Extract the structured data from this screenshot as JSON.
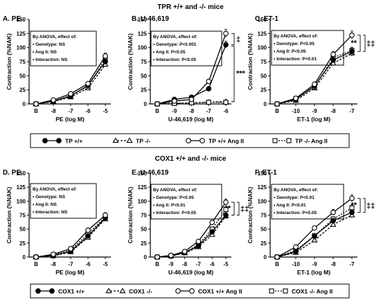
{
  "group_titles": [
    "TPR +/+ and -/- mice",
    "COX1 +/+ and -/- mice"
  ],
  "legends": [
    [
      "TP +/+",
      "TP -/-",
      "TP +/+ Ang II",
      "TP -/- Ang II"
    ],
    [
      "COX1 +/+",
      "COX1 -/-",
      "COX1 +/+ Ang II",
      "COX1 -/- Ang II"
    ]
  ],
  "colors": {
    "line": "#000000",
    "open_marker": "#ffffff",
    "filled_marker": "#000000"
  },
  "chart_data": [
    {
      "type": "line",
      "title": "A.  PE",
      "xlabel": "PE (log M)",
      "ylabel": "Contraction (%NAK)",
      "categories": [
        "B",
        "-8",
        "-7",
        "-6",
        "-5"
      ],
      "ylim": [
        0,
        150
      ],
      "yticks": [
        0,
        25,
        50,
        75,
        100,
        125,
        150
      ],
      "anova": [
        "By ANOVA, effect of:",
        "• Genotype: NS",
        "• Ang II: NS",
        "• Interaction: NS"
      ],
      "series": [
        {
          "name": "TP +/+",
          "values": [
            0,
            5,
            14,
            33,
            75
          ]
        },
        {
          "name": "TP -/-",
          "values": [
            0,
            4,
            12,
            28,
            70
          ]
        },
        {
          "name": "TP +/+ Ang II",
          "values": [
            0,
            7,
            18,
            36,
            85
          ]
        },
        {
          "name": "TP -/- Ang II",
          "values": [
            0,
            5,
            15,
            31,
            80
          ]
        }
      ],
      "annotations": []
    },
    {
      "type": "line",
      "title": "B.  U-46,619",
      "xlabel": "U-46,619 (log M)",
      "ylabel": "Contraction (%NAK)",
      "categories": [
        "B",
        "-9",
        "-8",
        "-7",
        "-6"
      ],
      "ylim": [
        0,
        150
      ],
      "yticks": [
        0,
        25,
        50,
        75,
        100,
        125,
        150
      ],
      "anova": [
        "By ANOVA, effect of:",
        "• Genotype: P<0.001",
        "• Ang II: P<0.05",
        "• Interaction: P<0.05"
      ],
      "series": [
        {
          "name": "TP +/+",
          "values": [
            0,
            8,
            12,
            27,
            105
          ]
        },
        {
          "name": "TP -/-",
          "values": [
            0,
            1,
            2,
            3,
            4
          ]
        },
        {
          "name": "TP +/+ Ang II",
          "values": [
            0,
            5,
            8,
            40,
            125
          ]
        },
        {
          "name": "TP -/- Ang II",
          "values": [
            0,
            1,
            2,
            3,
            3
          ]
        }
      ],
      "annotations": [
        "‡",
        "***"
      ]
    },
    {
      "type": "line",
      "title": "C.  ET-1",
      "xlabel": "ET-1 (log M)",
      "ylabel": "Contraction (%NAK)",
      "categories": [
        "B",
        "-10",
        "-9",
        "-8",
        "-7"
      ],
      "ylim": [
        0,
        150
      ],
      "yticks": [
        0,
        25,
        50,
        75,
        100,
        125,
        150
      ],
      "anova": [
        "By ANOVA, effect of:",
        "• Genotype: P<0.05",
        "• Ang II: P<0.05",
        "• Interaction: P<0.01"
      ],
      "series": [
        {
          "name": "TP +/+",
          "values": [
            0,
            8,
            32,
            78,
            93
          ]
        },
        {
          "name": "TP -/-",
          "values": [
            0,
            6,
            28,
            72,
            90
          ]
        },
        {
          "name": "TP +/+ Ang II",
          "values": [
            0,
            10,
            35,
            88,
            122
          ]
        },
        {
          "name": "TP -/- Ang II",
          "values": [
            0,
            9,
            30,
            82,
            95
          ]
        }
      ],
      "annotations": [
        "**",
        "‡‡"
      ]
    },
    {
      "type": "line",
      "title": "D.  PE",
      "xlabel": "PE (log M)",
      "ylabel": "Contraction (%NAK)",
      "categories": [
        "B",
        "-8",
        "-7",
        "-6",
        "-5"
      ],
      "ylim": [
        0,
        150
      ],
      "yticks": [
        0,
        25,
        50,
        75,
        100,
        125,
        150
      ],
      "anova": [
        "By ANOVA, effect of:",
        "• Genotype: NS",
        "• Ang II: NS",
        "• Interaction: NS"
      ],
      "series": [
        {
          "name": "COX1 +/+",
          "values": [
            0,
            3,
            10,
            38,
            70
          ]
        },
        {
          "name": "COX1 -/-",
          "values": [
            0,
            2,
            9,
            35,
            68
          ]
        },
        {
          "name": "COX1 +/+ Ang II",
          "values": [
            0,
            5,
            15,
            48,
            75
          ]
        },
        {
          "name": "COX1 -/- Ang II",
          "values": [
            0,
            4,
            12,
            42,
            72
          ]
        }
      ],
      "annotations": []
    },
    {
      "type": "line",
      "title": "E.  U-46,619",
      "xlabel": "U-46,619 (log M)",
      "ylabel": "Contraction (%NAK)",
      "categories": [
        "B",
        "-9",
        "-8",
        "-7",
        "-6",
        "-5"
      ],
      "ylim": [
        0,
        150
      ],
      "yticks": [
        0,
        25,
        50,
        75,
        100,
        125,
        150
      ],
      "anova": [
        "By ANOVA, effect of:",
        "• Genotype: P<0.05",
        "• Ang II: P<0.01",
        "• Interaction: P<0.05"
      ],
      "series": [
        {
          "name": "COX1 +/+",
          "values": [
            0,
            2,
            8,
            20,
            45,
            75
          ]
        },
        {
          "name": "COX1 -/-",
          "values": [
            0,
            2,
            7,
            18,
            40,
            73
          ]
        },
        {
          "name": "COX1 +/+ Ang II",
          "values": [
            0,
            3,
            10,
            28,
            62,
            98
          ]
        },
        {
          "name": "COX1 -/- Ang II",
          "values": [
            0,
            2,
            8,
            22,
            50,
            85
          ]
        }
      ],
      "annotations": [
        "**",
        "‡‡"
      ]
    },
    {
      "type": "line",
      "title": "F.  ET-1",
      "xlabel": "ET-1 (log M)",
      "ylabel": "Contraction (%NAK)",
      "categories": [
        "B",
        "-10",
        "-9",
        "-8",
        "-7"
      ],
      "ylim": [
        0,
        150
      ],
      "yticks": [
        0,
        25,
        50,
        75,
        100,
        125,
        150
      ],
      "anova": [
        "By ANOVA, effect of:",
        "• Genotype: P<0.01",
        "• Ang II: P<0.01",
        "• Interaction: P<0.05"
      ],
      "series": [
        {
          "name": "COX1 +/+",
          "values": [
            0,
            10,
            38,
            65,
            80
          ]
        },
        {
          "name": "COX1 -/-",
          "values": [
            0,
            8,
            30,
            58,
            75
          ]
        },
        {
          "name": "COX1 +/+ Ang II",
          "values": [
            0,
            18,
            52,
            80,
            105
          ]
        },
        {
          "name": "COX1 -/- Ang II",
          "values": [
            0,
            12,
            38,
            68,
            88
          ]
        }
      ],
      "annotations": [
        "**",
        "‡‡"
      ]
    }
  ]
}
